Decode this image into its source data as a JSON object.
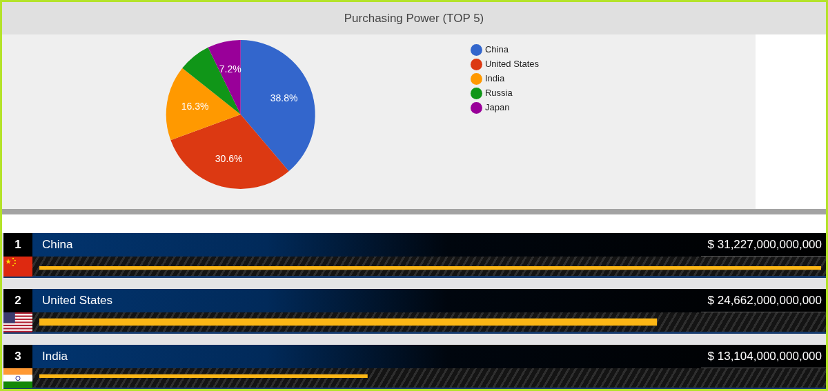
{
  "chart_data": [
    {
      "type": "pie",
      "title": "Purchasing Power (TOP 5)",
      "categories": [
        "China",
        "United States",
        "India",
        "Russia",
        "Japan"
      ],
      "values": [
        38.8,
        30.6,
        16.3,
        7.1,
        7.2
      ],
      "colors": [
        "#3366cc",
        "#dc3912",
        "#ff9900",
        "#109618",
        "#990099"
      ],
      "value_labels": [
        "38.8%",
        "30.6%",
        "16.3%",
        null,
        "7.2%"
      ],
      "legend": "top right"
    },
    {
      "type": "bar",
      "orientation": "horizontal",
      "categories": [
        "China",
        "United States",
        "India"
      ],
      "values": [
        31227000000000,
        24662000000000,
        13104000000000
      ],
      "color": "#fbb615",
      "value_labels": [
        "$ 31,227,000,000,000",
        "$ 24,662,000,000,000",
        "$ 13,104,000,000,000"
      ],
      "xlim": [
        0,
        31227000000000
      ],
      "tick_labels": "y",
      "annotations": [
        "1",
        "2",
        "3"
      ]
    }
  ]
}
